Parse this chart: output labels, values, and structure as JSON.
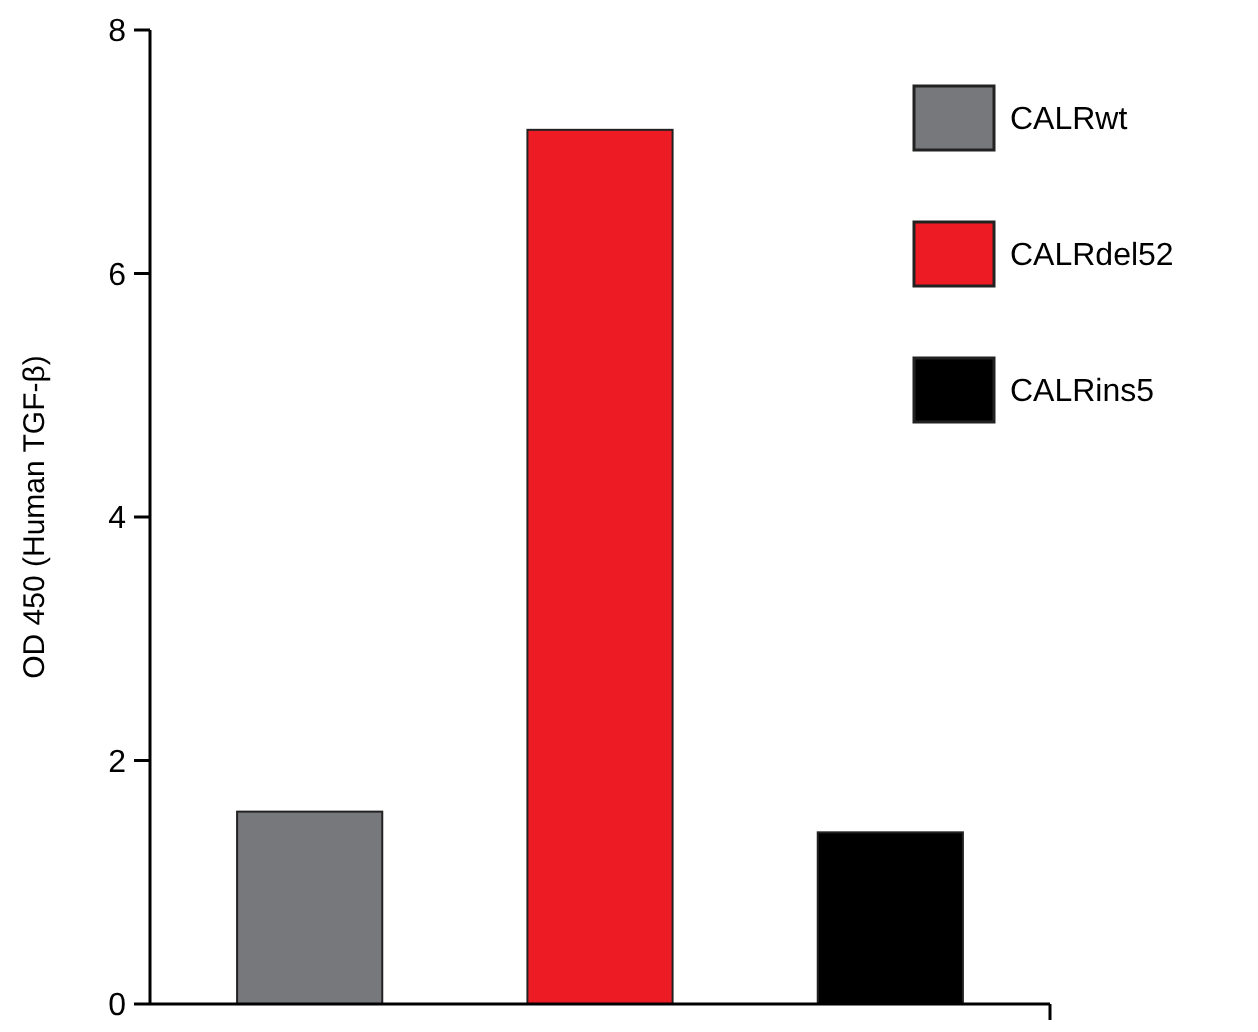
{
  "chart_data": {
    "type": "bar",
    "ylabel": "OD 450 (Human TGF-β)",
    "categories": [
      null,
      null,
      null
    ],
    "series": [
      {
        "name": "CALRwt",
        "color": "#77787b",
        "values": [
          1.58,
          null,
          null
        ]
      },
      {
        "name": "CALRdel52",
        "color": "#ed1c24",
        "values": [
          null,
          7.18,
          null
        ]
      },
      {
        "name": "CALRins5",
        "color": "#000000",
        "values": [
          null,
          null,
          1.41
        ]
      }
    ],
    "ylim": [
      0,
      8
    ],
    "yticks": [
      0,
      2,
      4,
      6,
      8
    ],
    "grid": false,
    "legend": "top right",
    "tick_labels": "y"
  }
}
